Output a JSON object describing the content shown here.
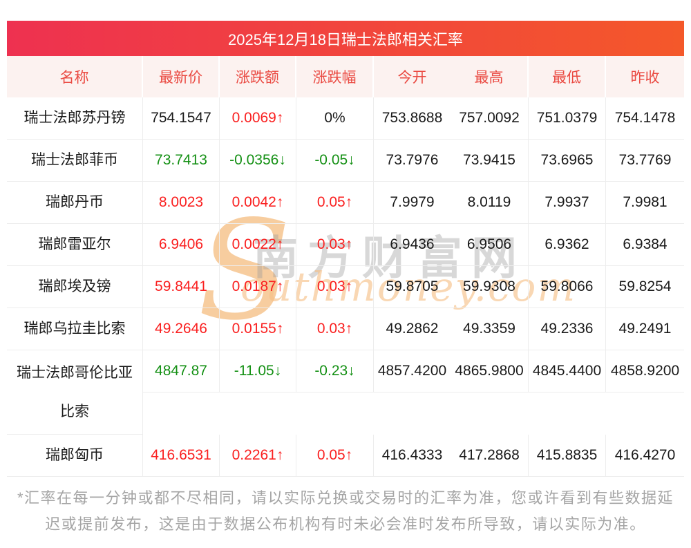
{
  "banner": {
    "title": "2025年12月18日瑞士法郎相关汇率"
  },
  "table": {
    "columns": [
      "名称",
      "最新价",
      "涨跌额",
      "涨跌幅",
      "今开",
      "最高",
      "最低",
      "昨收"
    ],
    "rows": [
      {
        "name": "瑞士法郎苏丹镑",
        "latest": "754.1547",
        "change": "0.0069↑",
        "pct": "0%",
        "open": "753.8688",
        "high": "757.0092",
        "low": "751.0379",
        "prev": "754.1478",
        "colors": {
          "latest": "black",
          "change": "red",
          "pct": "black"
        },
        "tall": false
      },
      {
        "name": "瑞士法郎菲币",
        "latest": "73.7413",
        "change": "-0.0356↓",
        "pct": "-0.05↓",
        "open": "73.7976",
        "high": "73.9415",
        "low": "73.6965",
        "prev": "73.7769",
        "colors": {
          "latest": "green",
          "change": "green",
          "pct": "green"
        },
        "tall": false
      },
      {
        "name": "瑞郎丹币",
        "latest": "8.0023",
        "change": "0.0042↑",
        "pct": "0.05↑",
        "open": "7.9979",
        "high": "8.0119",
        "low": "7.9937",
        "prev": "7.9981",
        "colors": {
          "latest": "red",
          "change": "red",
          "pct": "red"
        },
        "tall": false
      },
      {
        "name": "瑞郎雷亚尔",
        "latest": "6.9406",
        "change": "0.0022↑",
        "pct": "0.03↑",
        "open": "6.9436",
        "high": "6.9506",
        "low": "6.9362",
        "prev": "6.9384",
        "colors": {
          "latest": "red",
          "change": "red",
          "pct": "red"
        },
        "tall": false
      },
      {
        "name": "瑞郎埃及镑",
        "latest": "59.8441",
        "change": "0.0187↑",
        "pct": "0.03↑",
        "open": "59.8705",
        "high": "59.9308",
        "low": "59.8066",
        "prev": "59.8254",
        "colors": {
          "latest": "red",
          "change": "red",
          "pct": "red"
        },
        "tall": false
      },
      {
        "name": "瑞郎乌拉圭比索",
        "latest": "49.2646",
        "change": "0.0155↑",
        "pct": "0.03↑",
        "open": "49.2862",
        "high": "49.3359",
        "low": "49.2336",
        "prev": "49.2491",
        "colors": {
          "latest": "red",
          "change": "red",
          "pct": "red"
        },
        "tall": false
      },
      {
        "name": "瑞士法郎哥伦比亚比索",
        "latest": "4847.87",
        "change": "-11.05↓",
        "pct": "-0.23↓",
        "open": "4857.4200",
        "high": "4865.9800",
        "low": "4845.4400",
        "prev": "4858.9200",
        "colors": {
          "latest": "green",
          "change": "green",
          "pct": "green"
        },
        "tall": true
      },
      {
        "name": "瑞郎匈币",
        "latest": "416.6531",
        "change": "0.2261↑",
        "pct": "0.05↑",
        "open": "416.4333",
        "high": "417.2868",
        "low": "415.8835",
        "prev": "416.4270",
        "colors": {
          "latest": "red",
          "change": "red",
          "pct": "red"
        },
        "tall": false
      }
    ]
  },
  "watermark": {
    "big_letter": "S",
    "cn_text": "南方财富网",
    "en_text": "outhmoney.com"
  },
  "footer": {
    "disclaimer": "*汇率在每一分钟或都不尽相同，请以实际兑换或交易时的汇率为准，您或许看到有些数据延迟或提前发布，这是由于数据公布机构有时未必会准时发布所导致，请以实际为准。"
  },
  "colors": {
    "red": "#fa2020",
    "green": "#149014",
    "black": "#1a1a1a",
    "header_text": "#ea4a42",
    "header_bg": "#fcf2f0",
    "banner_gradient_left": "#ee3150",
    "banner_gradient_right": "#f4582a",
    "banner_text": "#ffffff",
    "border": "#ededed",
    "footer_text": "#a5a5a5",
    "watermark_orange": "#f6bf85",
    "watermark_gray": "#9a9a9a"
  }
}
